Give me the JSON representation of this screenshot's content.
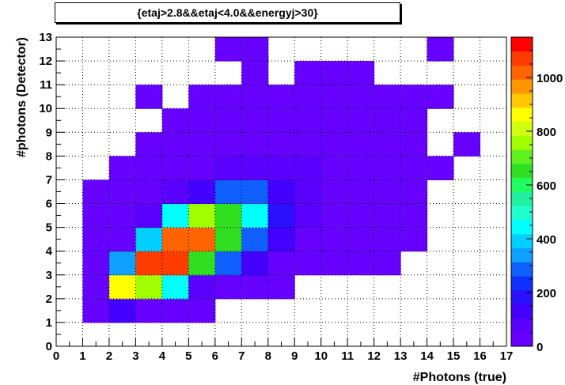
{
  "chart_data": {
    "type": "heatmap",
    "title": "{etaj>2.8&&etaj<4.0&&energyj>30}",
    "xlabel": "#Photons (true)",
    "ylabel": "#photons (Detector)",
    "xlim": [
      0,
      17
    ],
    "ylim": [
      0,
      13
    ],
    "x_ticks": [
      "0",
      "1",
      "2",
      "3",
      "4",
      "5",
      "6",
      "7",
      "8",
      "9",
      "10",
      "11",
      "12",
      "13",
      "14",
      "15",
      "16",
      "17"
    ],
    "y_ticks": [
      "0",
      "1",
      "2",
      "3",
      "4",
      "5",
      "6",
      "7",
      "8",
      "9",
      "10",
      "11",
      "12",
      "13"
    ],
    "grid": true,
    "colorbar": {
      "min": 0,
      "max": 1150,
      "ticks": [
        "0",
        "200",
        "400",
        "600",
        "800",
        "1000"
      ],
      "palette": [
        "#6600ff",
        "#5a00ff",
        "#4400ff",
        "#2a10ff",
        "#1030ff",
        "#1060ff",
        "#10a0ff",
        "#00d0ff",
        "#00ffff",
        "#20ffd0",
        "#20f0a0",
        "#20ff60",
        "#30e020",
        "#60f020",
        "#a0ff00",
        "#d0ff10",
        "#ffff00",
        "#ffc800",
        "#ff9600",
        "#ff6400",
        "#ff3c00",
        "#ff0000"
      ]
    },
    "cells": [
      {
        "x": 1,
        "y": 1,
        "value": 40
      },
      {
        "x": 2,
        "y": 1,
        "value": 120
      },
      {
        "x": 3,
        "y": 1,
        "value": 45
      },
      {
        "x": 4,
        "y": 1,
        "value": 40
      },
      {
        "x": 5,
        "y": 1,
        "value": 30
      },
      {
        "x": 1,
        "y": 2,
        "value": 45
      },
      {
        "x": 2,
        "y": 2,
        "value": 860
      },
      {
        "x": 3,
        "y": 2,
        "value": 760
      },
      {
        "x": 4,
        "y": 2,
        "value": 450
      },
      {
        "x": 5,
        "y": 2,
        "value": 100
      },
      {
        "x": 6,
        "y": 2,
        "value": 40
      },
      {
        "x": 7,
        "y": 2,
        "value": 35
      },
      {
        "x": 8,
        "y": 2,
        "value": 30
      },
      {
        "x": 1,
        "y": 3,
        "value": 45
      },
      {
        "x": 2,
        "y": 3,
        "value": 320
      },
      {
        "x": 3,
        "y": 3,
        "value": 1080
      },
      {
        "x": 4,
        "y": 3,
        "value": 1080
      },
      {
        "x": 5,
        "y": 3,
        "value": 650
      },
      {
        "x": 6,
        "y": 3,
        "value": 300
      },
      {
        "x": 7,
        "y": 3,
        "value": 110
      },
      {
        "x": 8,
        "y": 3,
        "value": 50
      },
      {
        "x": 9,
        "y": 3,
        "value": 40
      },
      {
        "x": 10,
        "y": 3,
        "value": 35
      },
      {
        "x": 11,
        "y": 3,
        "value": 30
      },
      {
        "x": 12,
        "y": 3,
        "value": 20
      },
      {
        "x": 1,
        "y": 4,
        "value": 40
      },
      {
        "x": 2,
        "y": 4,
        "value": 50
      },
      {
        "x": 3,
        "y": 4,
        "value": 410
      },
      {
        "x": 4,
        "y": 4,
        "value": 1020
      },
      {
        "x": 5,
        "y": 4,
        "value": 1020
      },
      {
        "x": 6,
        "y": 4,
        "value": 640
      },
      {
        "x": 7,
        "y": 4,
        "value": 300
      },
      {
        "x": 8,
        "y": 4,
        "value": 110
      },
      {
        "x": 9,
        "y": 4,
        "value": 50
      },
      {
        "x": 10,
        "y": 4,
        "value": 45
      },
      {
        "x": 11,
        "y": 4,
        "value": 40
      },
      {
        "x": 12,
        "y": 4,
        "value": 35
      },
      {
        "x": 13,
        "y": 4,
        "value": 25
      },
      {
        "x": 1,
        "y": 5,
        "value": 40
      },
      {
        "x": 2,
        "y": 5,
        "value": 50
      },
      {
        "x": 3,
        "y": 5,
        "value": 90
      },
      {
        "x": 4,
        "y": 5,
        "value": 470
      },
      {
        "x": 5,
        "y": 5,
        "value": 740
      },
      {
        "x": 6,
        "y": 5,
        "value": 650
      },
      {
        "x": 7,
        "y": 5,
        "value": 460
      },
      {
        "x": 8,
        "y": 5,
        "value": 180
      },
      {
        "x": 9,
        "y": 5,
        "value": 80
      },
      {
        "x": 10,
        "y": 5,
        "value": 50
      },
      {
        "x": 11,
        "y": 5,
        "value": 40
      },
      {
        "x": 12,
        "y": 5,
        "value": 35
      },
      {
        "x": 13,
        "y": 5,
        "value": 25
      },
      {
        "x": 1,
        "y": 6,
        "value": 40
      },
      {
        "x": 2,
        "y": 6,
        "value": 45
      },
      {
        "x": 3,
        "y": 6,
        "value": 45
      },
      {
        "x": 4,
        "y": 6,
        "value": 90
      },
      {
        "x": 5,
        "y": 6,
        "value": 140
      },
      {
        "x": 6,
        "y": 6,
        "value": 300
      },
      {
        "x": 7,
        "y": 6,
        "value": 310
      },
      {
        "x": 8,
        "y": 6,
        "value": 130
      },
      {
        "x": 9,
        "y": 6,
        "value": 85
      },
      {
        "x": 10,
        "y": 6,
        "value": 45
      },
      {
        "x": 11,
        "y": 6,
        "value": 40
      },
      {
        "x": 12,
        "y": 6,
        "value": 35
      },
      {
        "x": 13,
        "y": 6,
        "value": 25
      },
      {
        "x": 2,
        "y": 7,
        "value": 40
      },
      {
        "x": 3,
        "y": 7,
        "value": 45
      },
      {
        "x": 4,
        "y": 7,
        "value": 45
      },
      {
        "x": 5,
        "y": 7,
        "value": 50
      },
      {
        "x": 6,
        "y": 7,
        "value": 70
      },
      {
        "x": 7,
        "y": 7,
        "value": 80
      },
      {
        "x": 8,
        "y": 7,
        "value": 80
      },
      {
        "x": 9,
        "y": 7,
        "value": 75
      },
      {
        "x": 10,
        "y": 7,
        "value": 45
      },
      {
        "x": 11,
        "y": 7,
        "value": 40
      },
      {
        "x": 12,
        "y": 7,
        "value": 35
      },
      {
        "x": 13,
        "y": 7,
        "value": 30
      },
      {
        "x": 14,
        "y": 7,
        "value": 25
      },
      {
        "x": 3,
        "y": 8,
        "value": 40
      },
      {
        "x": 4,
        "y": 8,
        "value": 40
      },
      {
        "x": 5,
        "y": 8,
        "value": 40
      },
      {
        "x": 6,
        "y": 8,
        "value": 45
      },
      {
        "x": 7,
        "y": 8,
        "value": 50
      },
      {
        "x": 8,
        "y": 8,
        "value": 50
      },
      {
        "x": 9,
        "y": 8,
        "value": 50
      },
      {
        "x": 10,
        "y": 8,
        "value": 40
      },
      {
        "x": 11,
        "y": 8,
        "value": 40
      },
      {
        "x": 12,
        "y": 8,
        "value": 35
      },
      {
        "x": 13,
        "y": 8,
        "value": 30
      },
      {
        "x": 15,
        "y": 8,
        "value": 20
      },
      {
        "x": 4,
        "y": 9,
        "value": 40
      },
      {
        "x": 5,
        "y": 9,
        "value": 40
      },
      {
        "x": 6,
        "y": 9,
        "value": 40
      },
      {
        "x": 7,
        "y": 9,
        "value": 40
      },
      {
        "x": 8,
        "y": 9,
        "value": 40
      },
      {
        "x": 9,
        "y": 9,
        "value": 40
      },
      {
        "x": 10,
        "y": 9,
        "value": 40
      },
      {
        "x": 11,
        "y": 9,
        "value": 35
      },
      {
        "x": 12,
        "y": 9,
        "value": 35
      },
      {
        "x": 13,
        "y": 9,
        "value": 30
      },
      {
        "x": 3,
        "y": 10,
        "value": 40
      },
      {
        "x": 5,
        "y": 10,
        "value": 40
      },
      {
        "x": 6,
        "y": 10,
        "value": 40
      },
      {
        "x": 7,
        "y": 10,
        "value": 40
      },
      {
        "x": 8,
        "y": 10,
        "value": 40
      },
      {
        "x": 9,
        "y": 10,
        "value": 40
      },
      {
        "x": 10,
        "y": 10,
        "value": 40
      },
      {
        "x": 11,
        "y": 10,
        "value": 35
      },
      {
        "x": 12,
        "y": 10,
        "value": 30
      },
      {
        "x": 13,
        "y": 10,
        "value": 30
      },
      {
        "x": 14,
        "y": 10,
        "value": 25
      },
      {
        "x": 7,
        "y": 11,
        "value": 40
      },
      {
        "x": 9,
        "y": 11,
        "value": 40
      },
      {
        "x": 10,
        "y": 11,
        "value": 40
      },
      {
        "x": 11,
        "y": 11,
        "value": 35
      },
      {
        "x": 6,
        "y": 12,
        "value": 40
      },
      {
        "x": 7,
        "y": 12,
        "value": 40
      },
      {
        "x": 14,
        "y": 12,
        "value": 25
      }
    ]
  }
}
